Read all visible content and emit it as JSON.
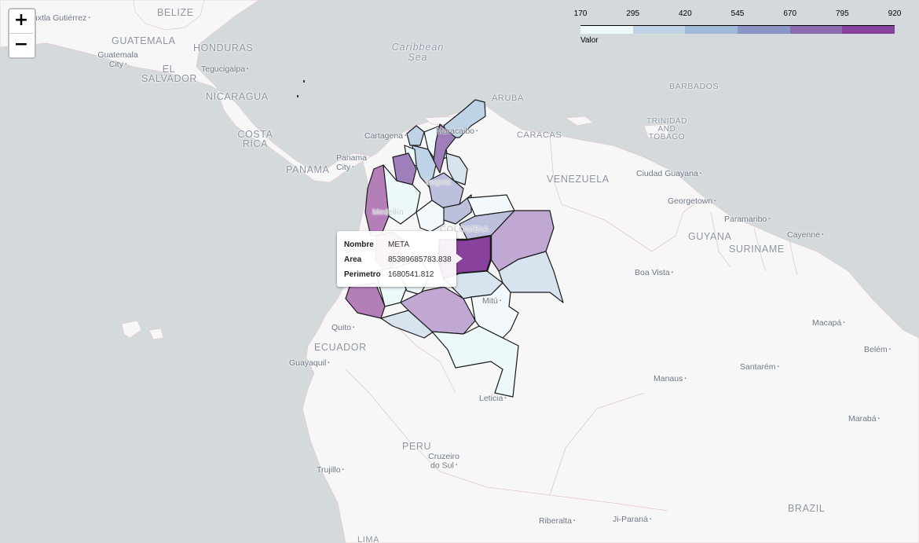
{
  "zoom": {
    "in_label": "+",
    "out_label": "−"
  },
  "legend": {
    "ticks": [
      "170",
      "295",
      "420",
      "545",
      "670",
      "795",
      "920"
    ],
    "colors": [
      "#edf8fb",
      "#bfd3e6",
      "#9ebcda",
      "#8c96c6",
      "#8c6bb1",
      "#88419d"
    ],
    "title": "Valor"
  },
  "tooltip": {
    "rows": [
      {
        "key": "Nombre",
        "value": "META"
      },
      {
        "key": "Area",
        "value": "85389685783.838"
      },
      {
        "key": "Perimetro",
        "value": "1680541.812"
      }
    ]
  },
  "labels": {
    "belize": "BELIZE",
    "guatemala": "GUATEMALA",
    "guatemala_city": "Guatemala City",
    "honduras": "HONDURAS",
    "tegucigalpa": "Tegucigalpa",
    "el_salvador": "EL SALVADOR",
    "nicaragua": "NICARAGUA",
    "costa_rica": "COSTA RICA",
    "panama": "PANAMA",
    "panama_city": "Panama City",
    "tuxtla": "Tuxtla Gutiérrez",
    "caribbean_sea": "Caribbean Sea",
    "aruba": "ARUBA",
    "cartagena": "Cartagena",
    "maracaibo": "Maracaibo",
    "caracas": "CARACAS",
    "barbados": "BARBADOS",
    "trinidad": "TRINIDAD AND TOBAGO",
    "venezuela": "VENEZUELA",
    "ciudad_guayana": "Ciudad Guayana",
    "georgetown": "Georgetown",
    "paramaribo": "Paramaribo",
    "guyana": "GUYANA",
    "suriname": "SURINAME",
    "cayenne": "Cayenne",
    "boa_vista": "Boa Vista",
    "macapa": "Macapá",
    "belem": "Belém",
    "santarem": "Santarém",
    "manaus": "Manaus",
    "maraba": "Marabá",
    "quito": "Quito",
    "ecuador": "ECUADOR",
    "guayaquil": "Guayaquil",
    "mitu": "Mitú",
    "leticia": "Leticia",
    "peru": "PERU",
    "cruzeiro": "Cruzeiro do Sul",
    "trujillo": "Trujillo",
    "riberalta": "Riberalta",
    "ji_parana": "Ji-Paraná",
    "brazil": "BRAZIL",
    "lima": "LIMA",
    "medellin": "Medellín",
    "bogota": "Bogotá",
    "colombia": "COLOMBIA"
  }
}
